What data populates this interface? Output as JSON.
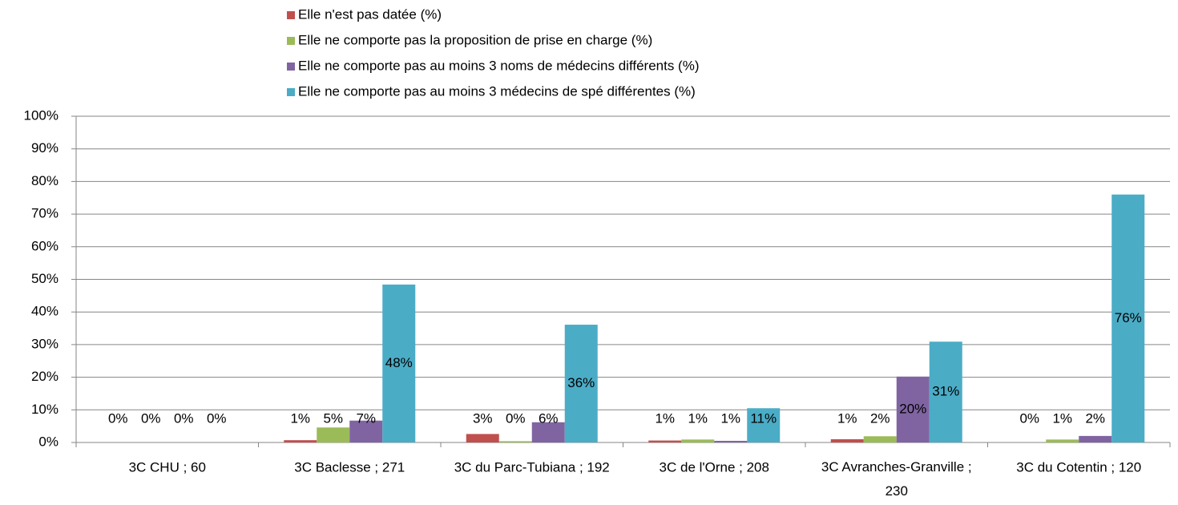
{
  "chart_data": {
    "type": "bar",
    "categories": [
      "3C CHU ; 60",
      "3C Baclesse ; 271",
      "3C du Parc-Tubiana ; 192",
      "3C de l'Orne ; 208",
      "3C Avranches-Granville ; 230",
      "3C du Cotentin ; 120"
    ],
    "series": [
      {
        "name": "Elle n'est pas datée (%)",
        "color": "#c0504d",
        "values": [
          0,
          0.7,
          2.6,
          0.6,
          1.0,
          0
        ],
        "value_labels": [
          "0%",
          "1%",
          "3%",
          "1%",
          "1%",
          "0%"
        ]
      },
      {
        "name": "Elle ne comporte pas la proposition de prise en charge (%)",
        "color": "#9bbb59",
        "values": [
          0,
          4.6,
          0.4,
          0.9,
          1.9,
          0.9
        ],
        "value_labels": [
          "0%",
          "5%",
          "0%",
          "1%",
          "2%",
          "1%"
        ]
      },
      {
        "name": "Elle ne comporte pas au moins 3 noms de médecins différents (%)",
        "color": "#8064a2",
        "values": [
          0,
          6.7,
          6.2,
          0.5,
          20.2,
          2.0
        ],
        "value_labels": [
          "0%",
          "7%",
          "6%",
          "1%",
          "20%",
          "2%"
        ]
      },
      {
        "name": "Elle ne comporte pas au moins 3 médecins de spé différentes (%)",
        "color": "#4bacc6",
        "values": [
          0,
          48.4,
          36.1,
          10.5,
          30.9,
          76.0
        ],
        "value_labels": [
          "0%",
          "48%",
          "36%",
          "11%",
          "31%",
          "76%"
        ]
      }
    ],
    "ylim": [
      0,
      100
    ],
    "yticks": [
      {
        "value": 0,
        "label": "0%"
      },
      {
        "value": 10,
        "label": "10%"
      },
      {
        "value": 20,
        "label": "20%"
      },
      {
        "value": 30,
        "label": "30%"
      },
      {
        "value": 40,
        "label": "40%"
      },
      {
        "value": 50,
        "label": "50%"
      },
      {
        "value": 60,
        "label": "60%"
      },
      {
        "value": 70,
        "label": "70%"
      },
      {
        "value": 80,
        "label": "80%"
      },
      {
        "value": 90,
        "label": "90%"
      },
      {
        "value": 100,
        "label": "100%"
      }
    ],
    "grid": true,
    "legend": "top"
  }
}
